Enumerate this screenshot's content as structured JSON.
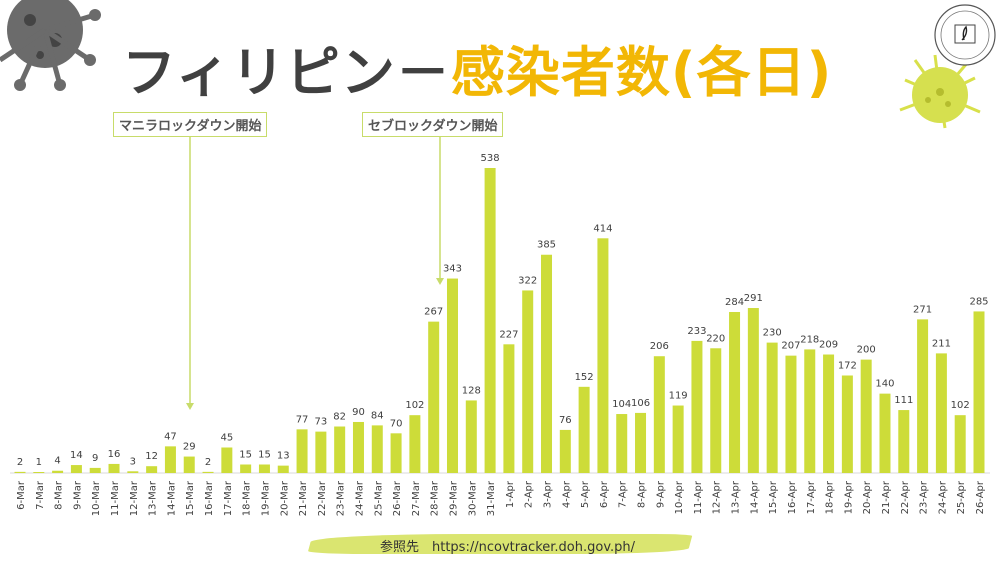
{
  "title": {
    "part1": "フィリピン－",
    "part2": "感染者数(各日)"
  },
  "annotations": [
    {
      "label": "マニラロックダウン開始",
      "date": "15-Mar"
    },
    {
      "label": "セブロックダウン開始",
      "date": "28-Mar"
    }
  ],
  "footer": {
    "source": "参照先　https://ncovtracker.doh.gov.ph/"
  },
  "colors": {
    "bar": "#CDDC39",
    "title_dark": "#404040",
    "title_accent": "#F2B705"
  },
  "chart_data": {
    "type": "bar",
    "title": "フィリピン－感染者数(各日)",
    "xlabel": "",
    "ylabel": "",
    "ylim": [
      0,
      540
    ],
    "grid": false,
    "categories": [
      "6-Mar",
      "7-Mar",
      "8-Mar",
      "9-Mar",
      "10-Mar",
      "11-Mar",
      "12-Mar",
      "13-Mar",
      "14-Mar",
      "15-Mar",
      "16-Mar",
      "17-Mar",
      "18-Mar",
      "19-Mar",
      "20-Mar",
      "21-Mar",
      "22-Mar",
      "23-Mar",
      "24-Mar",
      "25-Mar",
      "26-Mar",
      "27-Mar",
      "28-Mar",
      "29-Mar",
      "30-Mar",
      "31-Mar",
      "1-Apr",
      "2-Apr",
      "3-Apr",
      "4-Apr",
      "5-Apr",
      "6-Apr",
      "7-Apr",
      "8-Apr",
      "9-Apr",
      "10-Apr",
      "11-Apr",
      "12-Apr",
      "13-Apr",
      "14-Apr",
      "15-Apr",
      "16-Apr",
      "17-Apr",
      "18-Apr",
      "19-Apr",
      "20-Apr",
      "21-Apr",
      "22-Apr",
      "23-Apr",
      "24-Apr",
      "25-Apr",
      "26-Apr"
    ],
    "values": [
      2,
      1,
      4,
      14,
      9,
      16,
      3,
      12,
      47,
      29,
      2,
      45,
      15,
      15,
      13,
      77,
      73,
      82,
      90,
      84,
      70,
      102,
      267,
      343,
      128,
      538,
      227,
      322,
      385,
      76,
      152,
      414,
      104,
      106,
      206,
      119,
      233,
      220,
      284,
      291,
      230,
      207,
      218,
      209,
      172,
      200,
      140,
      111,
      271,
      211,
      102,
      285
    ]
  }
}
